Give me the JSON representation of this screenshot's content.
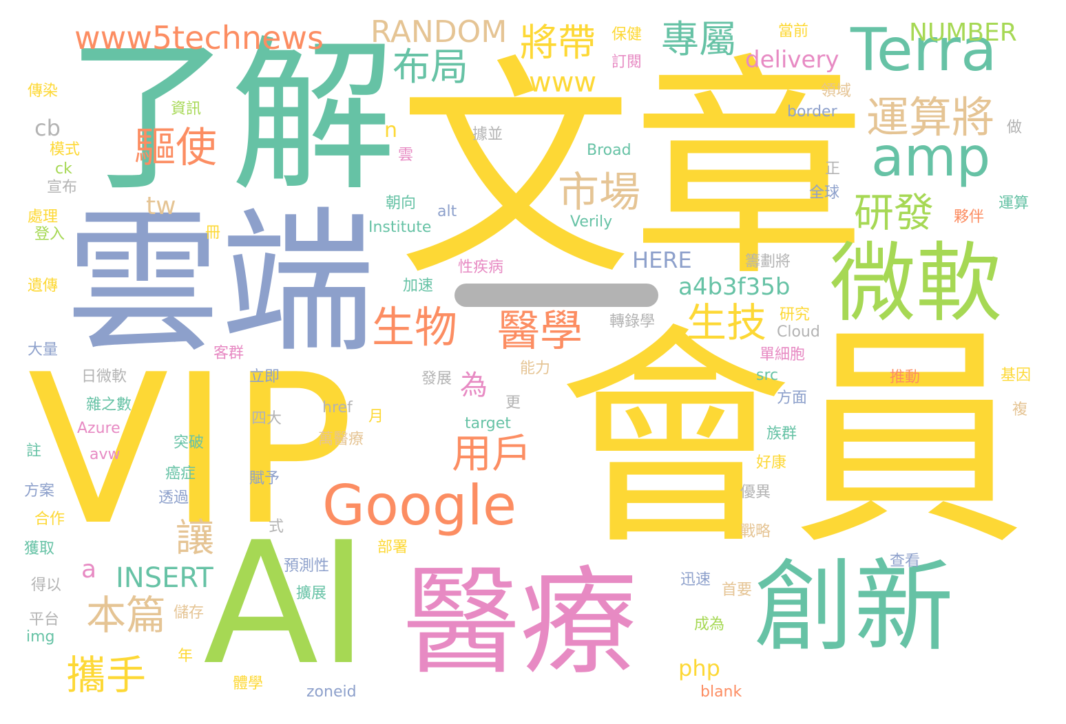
{
  "palette": {
    "yellow": "#fdd835",
    "green": "#66c2a5",
    "lime": "#a6d854",
    "blue": "#8da0cb",
    "orange": "#fc8d62",
    "pink": "#e78ac3",
    "tan": "#e5c494",
    "gray": "#b3b3b3"
  },
  "words": [
    {
      "text": "文章",
      "color": "yellow"
    },
    {
      "text": "會員",
      "color": "yellow"
    },
    {
      "text": "VIP",
      "color": "yellow"
    },
    {
      "text": "了解",
      "color": "green"
    },
    {
      "text": "雲端",
      "color": "blue"
    },
    {
      "text": "AI",
      "color": "lime"
    },
    {
      "text": "醫療",
      "color": "pink"
    },
    {
      "text": "創新",
      "color": "green"
    },
    {
      "text": "微軟",
      "color": "lime"
    },
    {
      "text": "Terra",
      "color": "green"
    },
    {
      "text": "amp",
      "color": "green"
    },
    {
      "text": "Google",
      "color": "orange"
    },
    {
      "text": "www5technews",
      "color": "orange"
    },
    {
      "text": "RANDOM",
      "color": "tan"
    },
    {
      "text": "將帶",
      "color": "yellow"
    },
    {
      "text": "專屬",
      "color": "green"
    },
    {
      "text": "NUMBER",
      "color": "lime"
    },
    {
      "text": "布局",
      "color": "green"
    },
    {
      "text": "delivery",
      "color": "pink"
    },
    {
      "text": "www",
      "color": "yellow"
    },
    {
      "text": "運算將",
      "color": "tan"
    },
    {
      "text": "驅使",
      "color": "orange"
    },
    {
      "text": "市場",
      "color": "tan"
    },
    {
      "text": "研發",
      "color": "lime"
    },
    {
      "text": "生物",
      "color": "orange"
    },
    {
      "text": "醫學",
      "color": "orange"
    },
    {
      "text": "生技",
      "color": "yellow"
    },
    {
      "text": "a4b3f35b",
      "color": "green"
    },
    {
      "text": "用戶",
      "color": "orange"
    },
    {
      "text": "為",
      "color": "pink"
    },
    {
      "text": "讓",
      "color": "tan"
    },
    {
      "text": "本篇",
      "color": "tan"
    },
    {
      "text": "攜手",
      "color": "yellow"
    },
    {
      "text": "INSERT",
      "color": "green"
    },
    {
      "text": "a",
      "color": "pink"
    },
    {
      "text": "cb",
      "color": "gray"
    },
    {
      "text": "tw",
      "color": "tan"
    },
    {
      "text": "n",
      "color": "yellow"
    },
    {
      "text": "HERE",
      "color": "blue"
    },
    {
      "text": "php",
      "color": "yellow"
    },
    {
      "text": "保健",
      "color": "yellow"
    },
    {
      "text": "訂閱",
      "color": "pink"
    },
    {
      "text": "當前",
      "color": "yellow"
    },
    {
      "text": "傳染",
      "color": "yellow"
    },
    {
      "text": "資訊",
      "color": "lime"
    },
    {
      "text": "模式",
      "color": "yellow"
    },
    {
      "text": "ck",
      "color": "lime"
    },
    {
      "text": "宣布",
      "color": "gray"
    },
    {
      "text": "處理",
      "color": "yellow"
    },
    {
      "text": "登入",
      "color": "lime"
    },
    {
      "text": "遺傳",
      "color": "yellow"
    },
    {
      "text": "大量",
      "color": "blue"
    },
    {
      "text": "日微軟",
      "color": "gray"
    },
    {
      "text": "雜之數",
      "color": "green"
    },
    {
      "text": "Azure",
      "color": "pink"
    },
    {
      "text": "註",
      "color": "green"
    },
    {
      "text": "avw",
      "color": "pink"
    },
    {
      "text": "方案",
      "color": "blue"
    },
    {
      "text": "合作",
      "color": "yellow"
    },
    {
      "text": "獲取",
      "color": "green"
    },
    {
      "text": "得以",
      "color": "gray"
    },
    {
      "text": "平台",
      "color": "gray"
    },
    {
      "text": "img",
      "color": "green"
    },
    {
      "text": "領域",
      "color": "tan"
    },
    {
      "text": "border",
      "color": "blue"
    },
    {
      "text": "做",
      "color": "gray"
    },
    {
      "text": "據並",
      "color": "gray"
    },
    {
      "text": "Broad",
      "color": "green"
    },
    {
      "text": "雲",
      "color": "pink"
    },
    {
      "text": "正",
      "color": "gray"
    },
    {
      "text": "全球",
      "color": "blue"
    },
    {
      "text": "運算",
      "color": "green"
    },
    {
      "text": "朝向",
      "color": "green"
    },
    {
      "text": "alt",
      "color": "blue"
    },
    {
      "text": "夥伴",
      "color": "orange"
    },
    {
      "text": "Institute",
      "color": "green"
    },
    {
      "text": "Verily",
      "color": "green"
    },
    {
      "text": "冊",
      "color": "yellow"
    },
    {
      "text": "性疾病",
      "color": "pink"
    },
    {
      "text": "籌劃將",
      "color": "gray"
    },
    {
      "text": "加速",
      "color": "green"
    },
    {
      "text": "研究",
      "color": "yellow"
    },
    {
      "text": "Cloud",
      "color": "gray"
    },
    {
      "text": "轉錄學",
      "color": "gray"
    },
    {
      "text": "客群",
      "color": "pink"
    },
    {
      "text": "單細胞",
      "color": "pink"
    },
    {
      "text": "能力",
      "color": "tan"
    },
    {
      "text": "推動",
      "color": "orange"
    },
    {
      "text": "src",
      "color": "green"
    },
    {
      "text": "立即",
      "color": "blue"
    },
    {
      "text": "發展",
      "color": "gray"
    },
    {
      "text": "基因",
      "color": "yellow"
    },
    {
      "text": "方面",
      "color": "blue"
    },
    {
      "text": "更",
      "color": "gray"
    },
    {
      "text": "四大",
      "color": "gray"
    },
    {
      "text": "href",
      "color": "gray"
    },
    {
      "text": "月",
      "color": "yellow"
    },
    {
      "text": "target",
      "color": "green"
    },
    {
      "text": "複",
      "color": "tan"
    },
    {
      "text": "萬醫療",
      "color": "tan"
    },
    {
      "text": "族群",
      "color": "green"
    },
    {
      "text": "突破",
      "color": "green"
    },
    {
      "text": "好康",
      "color": "yellow"
    },
    {
      "text": "癌症",
      "color": "green"
    },
    {
      "text": "賦予",
      "color": "blue"
    },
    {
      "text": "優異",
      "color": "gray"
    },
    {
      "text": "透過",
      "color": "blue"
    },
    {
      "text": "式",
      "color": "gray"
    },
    {
      "text": "戰略",
      "color": "tan"
    },
    {
      "text": "部署",
      "color": "yellow"
    },
    {
      "text": "預測性",
      "color": "blue"
    },
    {
      "text": "查看",
      "color": "blue"
    },
    {
      "text": "迅速",
      "color": "blue"
    },
    {
      "text": "首要",
      "color": "tan"
    },
    {
      "text": "擴展",
      "color": "green"
    },
    {
      "text": "儲存",
      "color": "tan"
    },
    {
      "text": "成為",
      "color": "lime"
    },
    {
      "text": "年",
      "color": "yellow"
    },
    {
      "text": "體學",
      "color": "yellow"
    },
    {
      "text": "zoneid",
      "color": "blue"
    },
    {
      "text": "blank",
      "color": "orange"
    }
  ]
}
